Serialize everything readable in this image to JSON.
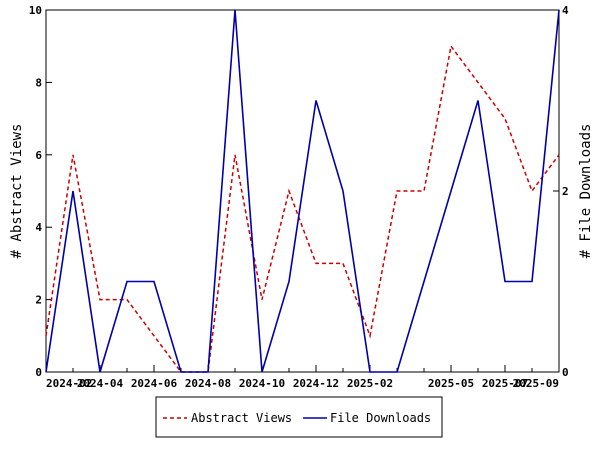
{
  "chart_data": {
    "type": "line",
    "x": [
      "2024-02",
      "2024-03",
      "2024-04",
      "2024-05",
      "2024-06",
      "2024-07",
      "2024-08",
      "2024-09",
      "2024-10",
      "2024-11",
      "2024-12",
      "2025-01",
      "2025-02",
      "2025-03",
      "2025-04",
      "2025-05",
      "2025-06",
      "2025-07",
      "2025-08",
      "2025-09"
    ],
    "x_tick_labels": [
      "2024-02",
      "2024-04",
      "2024-06",
      "2024-08",
      "2024-10",
      "2024-12",
      "2025-02",
      "2025-05",
      "2025-07",
      "2025-09"
    ],
    "x_tick_positions": [
      "2024-02",
      "2024-04",
      "2024-06",
      "2024-08",
      "2024-10",
      "2024-12",
      "2025-02",
      "2025-05",
      "2025-07",
      "2025-09"
    ],
    "xlim": [
      "2024-02",
      "2025-09"
    ],
    "ylabel": "# Abstract Views",
    "ylim": [
      0,
      10
    ],
    "y_ticks": [
      0,
      2,
      4,
      6,
      8,
      10
    ],
    "y2label": "# File Downloads",
    "y2lim": [
      0,
      4
    ],
    "y2_ticks": [
      0,
      2,
      4
    ],
    "series": [
      {
        "name": "Abstract Views",
        "axis": "left",
        "color": "#cc0000",
        "dash": "dashed",
        "values": [
          1,
          6,
          2,
          2,
          1,
          0,
          0,
          6,
          2,
          5,
          3,
          3,
          1,
          5,
          5,
          9,
          8,
          7,
          5,
          6
        ]
      },
      {
        "name": "File Downloads",
        "axis": "right",
        "color": "#0000aa",
        "dash": "solid",
        "values": [
          0,
          2,
          0,
          1,
          1,
          0,
          0,
          4,
          0,
          1,
          3,
          2,
          0,
          0,
          1,
          2,
          3,
          1,
          1,
          4
        ]
      }
    ],
    "grid": false,
    "legend_position": "bottom-center"
  }
}
